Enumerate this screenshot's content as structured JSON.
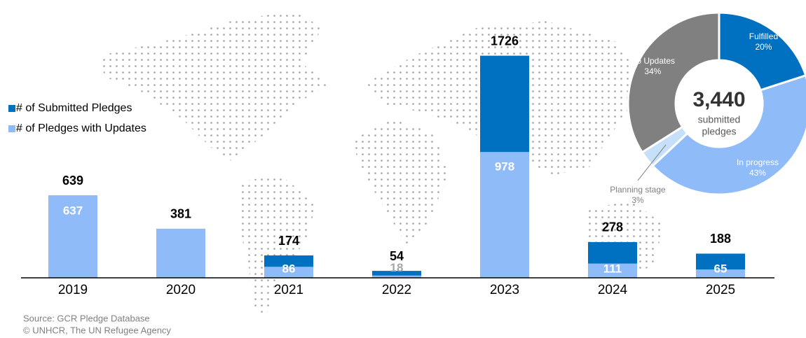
{
  "chart_data": [
    {
      "type": "bar",
      "categories": [
        "2019",
        "2020",
        "2021",
        "2022",
        "2023",
        "2024",
        "2025"
      ],
      "series": [
        {
          "name": "# of Submitted Pledges",
          "color": "#0070c0",
          "values": [
            639,
            381,
            174,
            54,
            1726,
            278,
            188
          ]
        },
        {
          "name": "# of Pledges with Updates",
          "color": "#8fbcf9",
          "values": [
            637,
            381,
            86,
            18,
            978,
            111,
            65
          ],
          "value_labels": [
            "637",
            null,
            "86",
            "18",
            "978",
            "111",
            "65"
          ]
        }
      ],
      "ylim": [
        0,
        1800
      ]
    },
    {
      "type": "donut",
      "categories": [
        "Fulfilled",
        "In progress",
        "Planning stage",
        "No Updates"
      ],
      "values": [
        20,
        43,
        3,
        34
      ],
      "value_labels": [
        "20%",
        "43%",
        "3%",
        "34%"
      ],
      "colors": [
        "#0070c0",
        "#8fbcf9",
        "#c6e0fa",
        "#808080"
      ],
      "center_label": "3,440",
      "center_subtitle": [
        "submitted",
        "pledges"
      ]
    }
  ],
  "source": [
    "Source: GCR Pledge Database",
    "© UNHCR, The UN Refugee Agency"
  ]
}
